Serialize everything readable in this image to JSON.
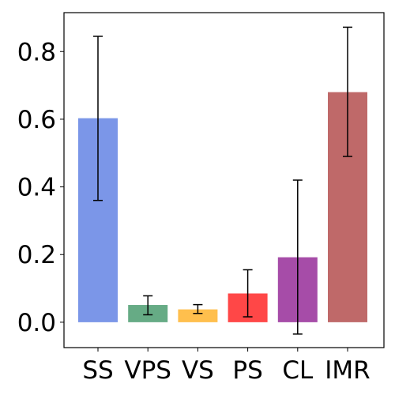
{
  "chart_data": {
    "type": "bar",
    "title": "",
    "xlabel": "",
    "ylabel": "",
    "categories": [
      "SS",
      "VPS",
      "VS",
      "PS",
      "CL",
      "IMR"
    ],
    "values": [
      0.603,
      0.051,
      0.038,
      0.085,
      0.192,
      0.68
    ],
    "error_low": [
      0.36,
      0.022,
      0.026,
      0.016,
      -0.035,
      0.49
    ],
    "error_high": [
      0.845,
      0.078,
      0.052,
      0.155,
      0.42,
      0.872
    ],
    "colors": [
      "#7B96E8",
      "#66AB85",
      "#FFBF4D",
      "#FF4747",
      "#A64CA8",
      "#BF6969"
    ],
    "ylim": [
      -0.075,
      0.915
    ],
    "yticks": [
      0.0,
      0.2,
      0.4,
      0.6,
      0.8
    ],
    "ytick_labels": [
      "0.0",
      "0.2",
      "0.4",
      "0.6",
      "0.8"
    ],
    "grid": false,
    "legend": "none"
  }
}
